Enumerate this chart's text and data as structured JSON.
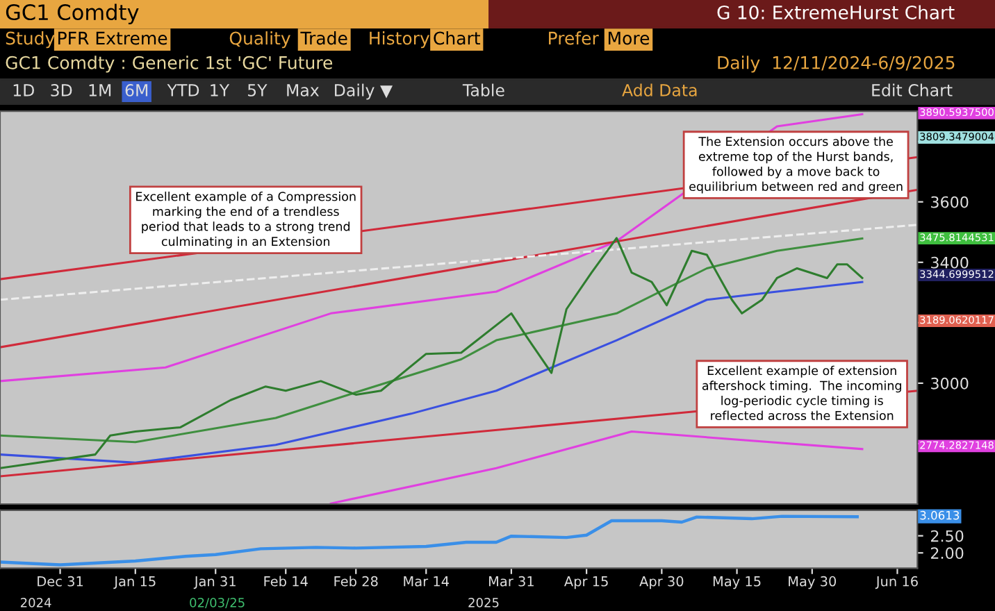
{
  "chart_data": [
    {
      "type": "line",
      "title": "GC1 Comdty : Generic 1st 'GC' Future",
      "subtitle": "Daily  12/11/2024-6/9/2025",
      "xlim": [
        "2024-12-19",
        "2025-06-20"
      ],
      "ylim": [
        2600,
        3900
      ],
      "yticks": [
        {
          "value": 2800,
          "label": null
        },
        3000,
        {
          "value": 3200,
          "label": null
        },
        3400,
        3600,
        {
          "value": 3800,
          "label": null
        }
      ],
      "tick_labels": "y",
      "grid": false,
      "legend": false,
      "series": [
        {
          "color": "#e040e0",
          "x": [
            "2024-12-19",
            "2025-01-21",
            "2025-02-23",
            "2025-03-28",
            "2025-04-21",
            "2025-05-23",
            "2025-06-09"
          ],
          "values": [
            3007,
            3052,
            3231,
            3303,
            3470,
            3850,
            3890
          ]
        },
        {
          "color": "#e040e0",
          "x": [
            "2025-02-23",
            "2025-03-28",
            "2025-04-24",
            "2025-06-09"
          ],
          "values": [
            2602,
            2719,
            2840,
            2782
          ]
        },
        {
          "color": "#3f8f3f",
          "x": [
            "2024-12-19",
            "2025-01-15",
            "2025-02-12",
            "2025-03-01",
            "2025-03-21",
            "2025-03-28",
            "2025-04-21",
            "2025-05-09",
            "2025-05-23",
            "2025-06-09"
          ],
          "values": [
            2827,
            2805,
            2885,
            2975,
            3079,
            3142,
            3231,
            3380,
            3438,
            3479
          ]
        },
        {
          "color": "#3a50e0",
          "x": [
            "2024-12-19",
            "2025-01-15",
            "2025-02-12",
            "2025-03-11",
            "2025-03-28",
            "2025-04-21",
            "2025-05-09",
            "2025-05-23",
            "2025-06-09"
          ],
          "values": [
            2764,
            2737,
            2796,
            2899,
            2975,
            3142,
            3276,
            3303,
            3335
          ]
        },
        {
          "color": "#d02a3a",
          "x": [
            "2024-12-19",
            "2025-06-20"
          ],
          "values": [
            3344,
            3748
          ]
        },
        {
          "color": "#d02a3a",
          "x": [
            "2024-12-19",
            "2025-06-20"
          ],
          "values": [
            3119,
            3640
          ]
        },
        {
          "color": "#d02a3a",
          "x": [
            "2024-12-19",
            "2025-06-20"
          ],
          "values": [
            2692,
            2975
          ]
        },
        {
          "color": "#eeeeee",
          "line_style": "dashed",
          "x": [
            "2024-12-19",
            "2025-06-20"
          ],
          "values": [
            3276,
            3524
          ]
        },
        {
          "color": "#2e7d2e",
          "x": [
            "2024-12-19",
            "2025-01-07",
            "2025-01-10",
            "2025-01-15",
            "2025-01-24",
            "2025-02-03",
            "2025-02-10",
            "2025-02-14",
            "2025-02-21",
            "2025-02-28",
            "2025-03-05",
            "2025-03-14",
            "2025-03-21",
            "2025-03-31",
            "2025-04-03",
            "2025-04-08",
            "2025-04-11",
            "2025-04-16",
            "2025-04-21",
            "2025-04-24",
            "2025-04-28",
            "2025-05-01",
            "2025-05-06",
            "2025-05-09",
            "2025-05-14",
            "2025-05-16",
            "2025-05-20",
            "2025-05-23",
            "2025-05-27",
            "2025-06-02",
            "2025-06-04",
            "2025-06-06",
            "2025-06-09"
          ],
          "values": [
            2719,
            2764,
            2827,
            2840,
            2854,
            2944,
            2989,
            2975,
            3007,
            2962,
            2975,
            3097,
            3101,
            3231,
            3155,
            3034,
            3245,
            3366,
            3480,
            3366,
            3335,
            3258,
            3438,
            3425,
            3276,
            3231,
            3276,
            3348,
            3380,
            3348,
            3393,
            3393,
            3348
          ]
        }
      ],
      "annotations": [
        "GC1 Comdty",
        "G 10: ExtremeHurst Chart",
        "Study",
        "PFR Extreme",
        "Quality",
        "Trade",
        "History",
        "Chart",
        "Prefer",
        "More",
        "1D",
        "3D",
        "1M",
        "6M",
        "YTD",
        "1Y",
        "5Y",
        "Max",
        "Daily ▼",
        "Table",
        "Add Data",
        "Edit Chart",
        "Excellent example of a Compression\nmarking the end of a trendless\nperiod that leads to a strong trend\nculminating in an Extension",
        "The Extension occurs above the\nextreme top of the Hurst bands,\nfollowed by a move back to\nequilibrium between red and green",
        "Excellent example of extension\naftershock timing.  The incoming\nlog-periodic cycle timing is\nreflected across the Extension",
        "3890.5937500",
        "3809.3479004",
        "3475.8144531",
        "3344.6999512",
        "3189.0620117",
        "2774.2827148"
      ]
    },
    {
      "type": "line",
      "xlim": [
        "2024-12-19",
        "2025-06-20"
      ],
      "xticks": [
        {
          "value": "2024-12-31",
          "label": "Dec 31"
        },
        {
          "value": "2025-01-15",
          "label": "Jan 15"
        },
        {
          "value": "2025-01-31",
          "label": "Jan 31"
        },
        {
          "value": "2025-02-14",
          "label": "Feb 14"
        },
        {
          "value": "2025-02-28",
          "label": "Feb 28"
        },
        {
          "value": "2025-03-14",
          "label": "Mar 14"
        },
        {
          "value": "2025-03-31",
          "label": "Mar 31"
        },
        {
          "value": "2025-04-15",
          "label": "Apr 15"
        },
        {
          "value": "2025-04-30",
          "label": "Apr 30"
        },
        {
          "value": "2025-05-15",
          "label": "May 15"
        },
        {
          "value": "2025-05-30",
          "label": "May 30"
        },
        {
          "value": "2025-06-16",
          "label": "Jun 16"
        }
      ],
      "ylim": [
        1.55,
        3.25
      ],
      "yticks": [
        {
          "value": 2,
          "label": "2.00"
        },
        {
          "value": 2.5,
          "label": "2.50"
        }
      ],
      "grid": false,
      "legend": false,
      "series": [
        {
          "color": "#3a8fe8",
          "x": [
            "2024-12-19",
            "2024-12-31",
            "2025-01-15",
            "2025-01-25",
            "2025-01-31",
            "2025-02-09",
            "2025-02-20",
            "2025-02-28",
            "2025-03-14",
            "2025-03-22",
            "2025-03-28",
            "2025-03-31",
            "2025-04-11",
            "2025-04-15",
            "2025-04-20",
            "2025-04-30",
            "2025-05-04",
            "2025-05-07",
            "2025-05-18",
            "2025-05-24",
            "2025-06-08"
          ],
          "values": [
            1.73,
            1.65,
            1.76,
            1.9,
            1.95,
            2.12,
            2.16,
            2.14,
            2.19,
            2.31,
            2.31,
            2.49,
            2.45,
            2.52,
            2.94,
            2.94,
            2.9,
            3.05,
            3.0,
            3.07,
            3.06
          ]
        }
      ],
      "annotations": [
        "2024",
        "02/03/25",
        "2025",
        "3.0613"
      ]
    }
  ]
}
